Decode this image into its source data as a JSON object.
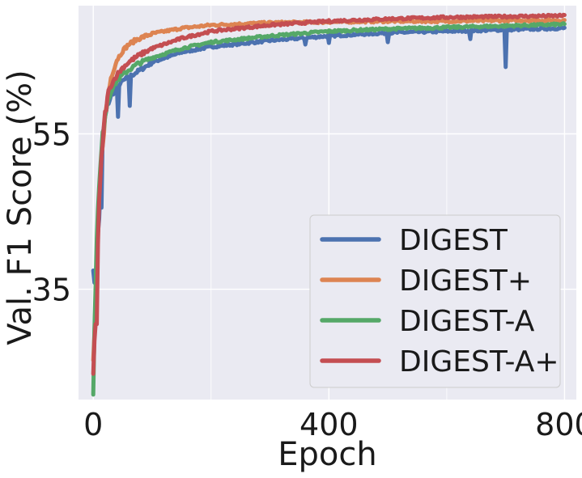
{
  "chart_data": {
    "type": "line",
    "title": "",
    "xlabel": "Epoch",
    "ylabel": "Val. F1 Score (%)",
    "xlim": [
      -25,
      820
    ],
    "ylim": [
      20.8,
      71.5
    ],
    "xticks": [
      0,
      400,
      800
    ],
    "xtick_labels": [
      "0",
      "400",
      "800"
    ],
    "yticks": [
      35,
      55
    ],
    "ytick_labels": [
      "35",
      "55"
    ],
    "grid": true,
    "legend_position": "lower right",
    "background": "#EAEAF2",
    "series": [
      {
        "name": "DIGEST",
        "color": "#4C72B0",
        "x": [
          0,
          3,
          6,
          10,
          15,
          20,
          25,
          30,
          40,
          50,
          60,
          75,
          100,
          150,
          200,
          300,
          400,
          500,
          600,
          700,
          800
        ],
        "y": [
          38,
          34,
          40,
          44,
          54,
          57,
          59,
          59.8,
          61,
          61.8,
          62.3,
          63,
          64.2,
          65.5,
          66.2,
          67,
          67.6,
          68,
          68.2,
          68.4,
          68.6
        ],
        "dips": [
          [
            14,
            45.5
          ],
          [
            42,
            57.2
          ],
          [
            62,
            58.6
          ],
          [
            360,
            66.5
          ],
          [
            400,
            66.7
          ],
          [
            500,
            66.8
          ],
          [
            640,
            67.2
          ],
          [
            700,
            63.6
          ]
        ]
      },
      {
        "name": "DIGEST+",
        "color": "#DD8452",
        "x": [
          0,
          3,
          6,
          10,
          15,
          20,
          25,
          30,
          40,
          50,
          60,
          75,
          100,
          150,
          200,
          300,
          400,
          500,
          600,
          700,
          800
        ],
        "y": [
          26,
          31,
          38,
          47,
          53,
          57,
          60,
          62.2,
          64.5,
          65.7,
          66.5,
          67.2,
          67.9,
          68.6,
          69,
          69.3,
          69.4,
          69.5,
          69.5,
          69.6,
          69.6
        ],
        "dips": []
      },
      {
        "name": "DIGEST-A",
        "color": "#55A868",
        "x": [
          0,
          3,
          6,
          10,
          15,
          20,
          25,
          30,
          40,
          50,
          60,
          75,
          100,
          150,
          200,
          300,
          400,
          500,
          600,
          700,
          800
        ],
        "y": [
          22,
          33,
          42,
          48,
          54,
          57.5,
          59.5,
          60.5,
          61.8,
          62.6,
          63.2,
          64,
          64.8,
          66,
          66.8,
          67.6,
          68.2,
          68.5,
          68.7,
          68.9,
          69.1
        ],
        "dips": []
      },
      {
        "name": "DIGEST-A+",
        "color": "#C44E52",
        "x": [
          0,
          3,
          6,
          10,
          15,
          20,
          25,
          30,
          40,
          50,
          60,
          75,
          100,
          150,
          200,
          300,
          400,
          500,
          600,
          700,
          800
        ],
        "y": [
          24,
          30,
          36,
          46,
          53,
          57.5,
          60,
          61.2,
          62.6,
          63.5,
          64.2,
          65,
          66,
          67.3,
          68.2,
          69,
          69.5,
          69.8,
          70,
          70.1,
          70.2
        ],
        "dips": [
          [
            5,
            30.5
          ]
        ]
      }
    ]
  }
}
